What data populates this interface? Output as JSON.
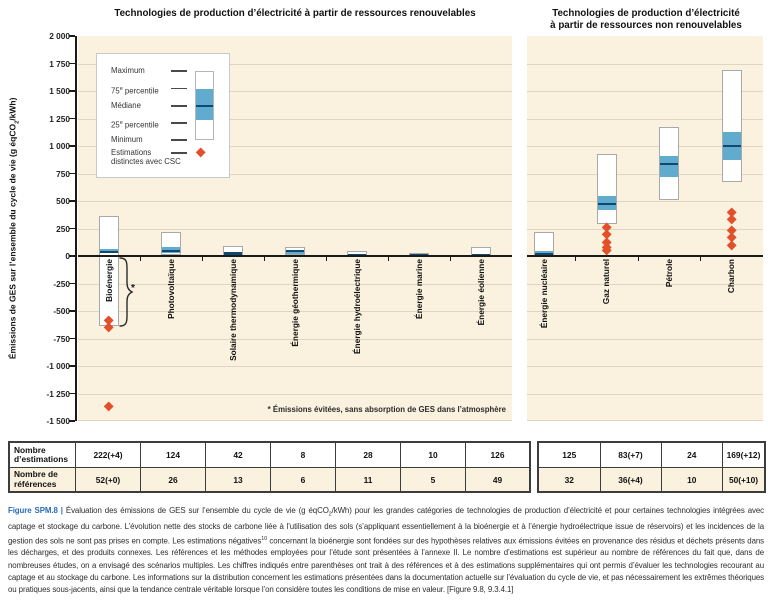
{
  "chart_data": {
    "type": "boxplot",
    "unit": "g éqCO2/kWh",
    "ylim": [
      -1500,
      2000
    ],
    "grid_step": 250,
    "legend_position": "top-left inside plot",
    "title_left": "Technologies de production d’électricité à partir de ressources renouvelables",
    "title_right_line1": "Technologies de production d’électricité",
    "title_right_line2": "à partir de ressources non renouvelables",
    "y_axis": {
      "title_pre": "Émissions de GES sur l’ensemble du cycle de vie  (g éqCO",
      "title_sub": "2",
      "title_post": "/kWh)",
      "ticks": [
        {
          "label": "2 000",
          "value": 2000
        },
        {
          "label": "1 750",
          "value": 1750
        },
        {
          "label": "1 500",
          "value": 1500
        },
        {
          "label": "1 250",
          "value": 1250
        },
        {
          "label": "1 000",
          "value": 1000
        },
        {
          "label": "750",
          "value": 750
        },
        {
          "label": "500",
          "value": 500
        },
        {
          "label": "250",
          "value": 250
        },
        {
          "label": "0",
          "value": 0
        },
        {
          "label": "-250",
          "value": -250
        },
        {
          "label": "-500",
          "value": -500
        },
        {
          "label": "-750",
          "value": -750
        },
        {
          "label": "-1 000",
          "value": -1000
        },
        {
          "label": "-1 250",
          "value": -1250
        },
        {
          "label": "-1 500",
          "value": -1500
        }
      ]
    },
    "groups": [
      {
        "name": "renouvelables",
        "items": [
          {
            "label": "Bioénergie",
            "min": -633,
            "p25": 23,
            "median": 40,
            "p75": 64,
            "max": 360,
            "ccs": [
              -585,
              -655,
              -1368
            ],
            "bracket": true
          },
          {
            "label": "Photovoltaïque",
            "min": 5,
            "p25": 29,
            "median": 46,
            "p75": 80,
            "max": 217
          },
          {
            "label": "Solaire thermodynamique",
            "min": 7,
            "p25": 14,
            "median": 22,
            "p75": 32,
            "max": 89
          },
          {
            "label": "Énergie géothermique",
            "min": 6,
            "p25": 20,
            "median": 45,
            "p75": 57,
            "max": 79
          },
          {
            "label": "Énergie hydroélectrique",
            "min": 0,
            "p25": 3,
            "median": 4,
            "p75": 7,
            "max": 43
          },
          {
            "label": "Énergie marine",
            "min": 2,
            "p25": 6,
            "median": 8,
            "p75": 9,
            "max": 23
          },
          {
            "label": "Énergie éolienne",
            "min": 2,
            "p25": 8,
            "median": 12,
            "p75": 20,
            "max": 81
          }
        ]
      },
      {
        "name": "non renouvelables",
        "items": [
          {
            "label": "Énergie nucléaire",
            "min": 1,
            "p25": 8,
            "median": 16,
            "p75": 45,
            "max": 220
          },
          {
            "label": "Gaz naturel",
            "min": 290,
            "p25": 422,
            "median": 469,
            "p75": 548,
            "max": 930,
            "ccs": [
              260,
              190,
              120,
              75,
              45
            ]
          },
          {
            "label": "Pétrole",
            "min": 510,
            "p25": 722,
            "median": 840,
            "p75": 907,
            "max": 1170
          },
          {
            "label": "Charbon",
            "min": 675,
            "p25": 877,
            "median": 1001,
            "p75": 1130,
            "max": 1689,
            "ccs": [
              398,
              332,
              232,
              162,
              95
            ]
          }
        ]
      }
    ]
  },
  "legend": {
    "items": [
      {
        "pre": "Maximum"
      },
      {
        "pre": "75",
        "sup": "e",
        "post": " percentile"
      },
      {
        "pre": "Médiane"
      },
      {
        "pre": "25",
        "sup": "e",
        "post": " percentile"
      },
      {
        "pre": "Minimum"
      },
      {
        "pre": "Estimations distinctes avec CSC"
      }
    ]
  },
  "annotation": {
    "marker": "*"
  },
  "footnote": {
    "marker": "*",
    "text": " Émissions évitées, sans absorption de GES dans l’atmosphère"
  },
  "table": {
    "row1_header": "Nombre d’estimations",
    "row2_header": "Nombre de références",
    "left": {
      "estimations": [
        "222(+4)",
        "124",
        "42",
        "8",
        "28",
        "10",
        "126"
      ],
      "references": [
        "52(+0)",
        "26",
        "13",
        "6",
        "11",
        "5",
        "49"
      ]
    },
    "right": {
      "estimations": [
        "125",
        "83(+7)",
        "24",
        "169(+12)"
      ],
      "references": [
        "32",
        "36(+4)",
        "10",
        "50(+10)"
      ]
    }
  },
  "caption": {
    "label": "Figure SPM.8 |",
    "seg1": "Évaluation des émissions de GES sur l’ensemble du cycle de vie (g éqCO",
    "sub1": "2",
    "seg2": "/kWh) pour les grandes catégories de technologies de production d’électricité et pour certaines technologies intégrées avec captage et stockage du carbone. L’évolution nette des stocks de carbone liée à l’utilisation des sols (s’appliquant essentiellement à la bioénergie et à l’énergie hydroélectrique issue de réservoirs) et les incidences de la gestion des sols ne sont pas prises en compte. Les estimations négatives",
    "sup1": "10",
    "seg3": " concernant la bioénergie sont fondées sur des hypothèses relatives aux émissions évitées en provenance des résidus et déchets présents dans les décharges, et des produits connexes. Les références et les méthodes employées pour l’étude sont présentées à l’annexe II. Le nombre d’estimations est supérieur au nombre de références du fait que, dans de nombreuses études, on a envisagé des scénarios multiples. Les chiffres indiqués entre parenthèses ont trait à des références et à des estimations supplémentaires qui ont permis d’évaluer les technologies recourant au captage et au stockage du carbone. Les informations sur la distribution concernent les estimations présentées dans la documentation actuelle sur l’évaluation du cycle de vie, et pas nécessairement les extrêmes théoriques ou pratiques sous-jacents, ainsi que la tendance centrale véritable lorsque l’on considère toutes les conditions de mise en valeur. [Figure 9.8, 9.3.4.1]"
  }
}
